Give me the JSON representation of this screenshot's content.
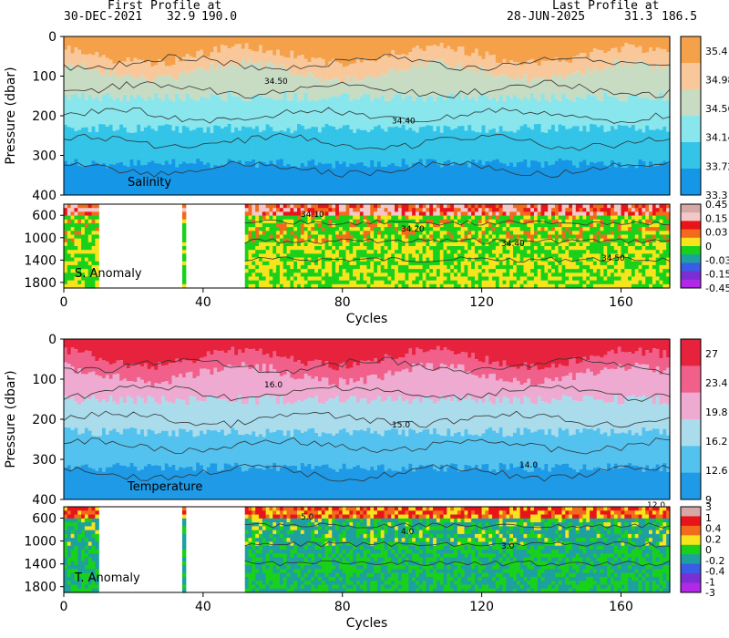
{
  "header": {
    "first_label": "First Profile at",
    "first_date": "30-DEC-2021",
    "first_lat": "32.9",
    "first_lon": "190.0",
    "last_label": "Last Profile at",
    "last_date": "28-JUN-2025",
    "last_lat": "31.3",
    "last_lon": "186.5"
  },
  "chart_data": [
    {
      "type": "heatmap",
      "panel": "salinity",
      "label": "Salinity",
      "ylabel": "Pressure (dbar)",
      "ylim": [
        400,
        0
      ],
      "xlim": [
        0,
        174
      ],
      "y_ticks": [
        "0",
        "100",
        "200",
        "300",
        "400"
      ],
      "colorbar_ticks": [
        "35.4",
        "34.98",
        "34.56",
        "34.14",
        "33.72",
        "33.3"
      ],
      "colors": [
        "#f5a14a",
        "#f8c89a",
        "#c8dcc4",
        "#88e6ec",
        "#33c4e8",
        "#1696e6"
      ],
      "contour_labels": [
        "34.50",
        "34.40"
      ]
    },
    {
      "type": "heatmap",
      "panel": "salinity-anomaly",
      "label": "S. Anomaly",
      "ylim": [
        1900,
        400
      ],
      "y_ticks": [
        "600",
        "1000",
        "1400",
        "1800"
      ],
      "colorbar_ticks": [
        "0.45",
        "0.15",
        "0.03",
        "0",
        "-0.03",
        "-0.15",
        "-0.45"
      ],
      "colors": [
        "#d6a8a8",
        "#f4c8c8",
        "#e8141a",
        "#f26a1c",
        "#f8e41c",
        "#19d11b",
        "#1ea0a0",
        "#3a5ce6",
        "#7a2ed4",
        "#b228e8"
      ],
      "contour_labels": [
        "34.10",
        "34.20",
        "34.40",
        "34.50"
      ],
      "xlabel": "Cycles",
      "x_ticks": [
        "0",
        "40",
        "80",
        "120",
        "160"
      ]
    },
    {
      "type": "heatmap",
      "panel": "temperature",
      "label": "Temperature",
      "ylabel": "Pressure (dbar)",
      "ylim": [
        400,
        0
      ],
      "xlim": [
        0,
        174
      ],
      "y_ticks": [
        "0",
        "100",
        "200",
        "300",
        "400"
      ],
      "colorbar_ticks": [
        "27",
        "23.4",
        "19.8",
        "16.2",
        "12.6",
        "9"
      ],
      "colors": [
        "#e6223c",
        "#f0608a",
        "#eeaad0",
        "#aadcec",
        "#54c2ee",
        "#1e9ae6"
      ],
      "contour_labels": [
        "16.0",
        "15.0",
        "14.0",
        "12.0"
      ]
    },
    {
      "type": "heatmap",
      "panel": "temperature-anomaly",
      "label": "T. Anomaly",
      "ylim": [
        1900,
        400
      ],
      "y_ticks": [
        "600",
        "1000",
        "1400",
        "1800"
      ],
      "colorbar_ticks": [
        "3",
        "1",
        "0.4",
        "0.2",
        "0",
        "-0.2",
        "-0.4",
        "-1",
        "-3"
      ],
      "colors": [
        "#d6a8a8",
        "#e8141a",
        "#f26a1c",
        "#f8e41c",
        "#19d11b",
        "#1ea0a0",
        "#3a5ce6",
        "#7a2ed4",
        "#b228e8"
      ],
      "contour_labels": [
        "5.0",
        "4.0",
        "3.0"
      ],
      "xlabel": "Cycles",
      "x_ticks": [
        "0",
        "40",
        "80",
        "120",
        "160"
      ]
    }
  ]
}
